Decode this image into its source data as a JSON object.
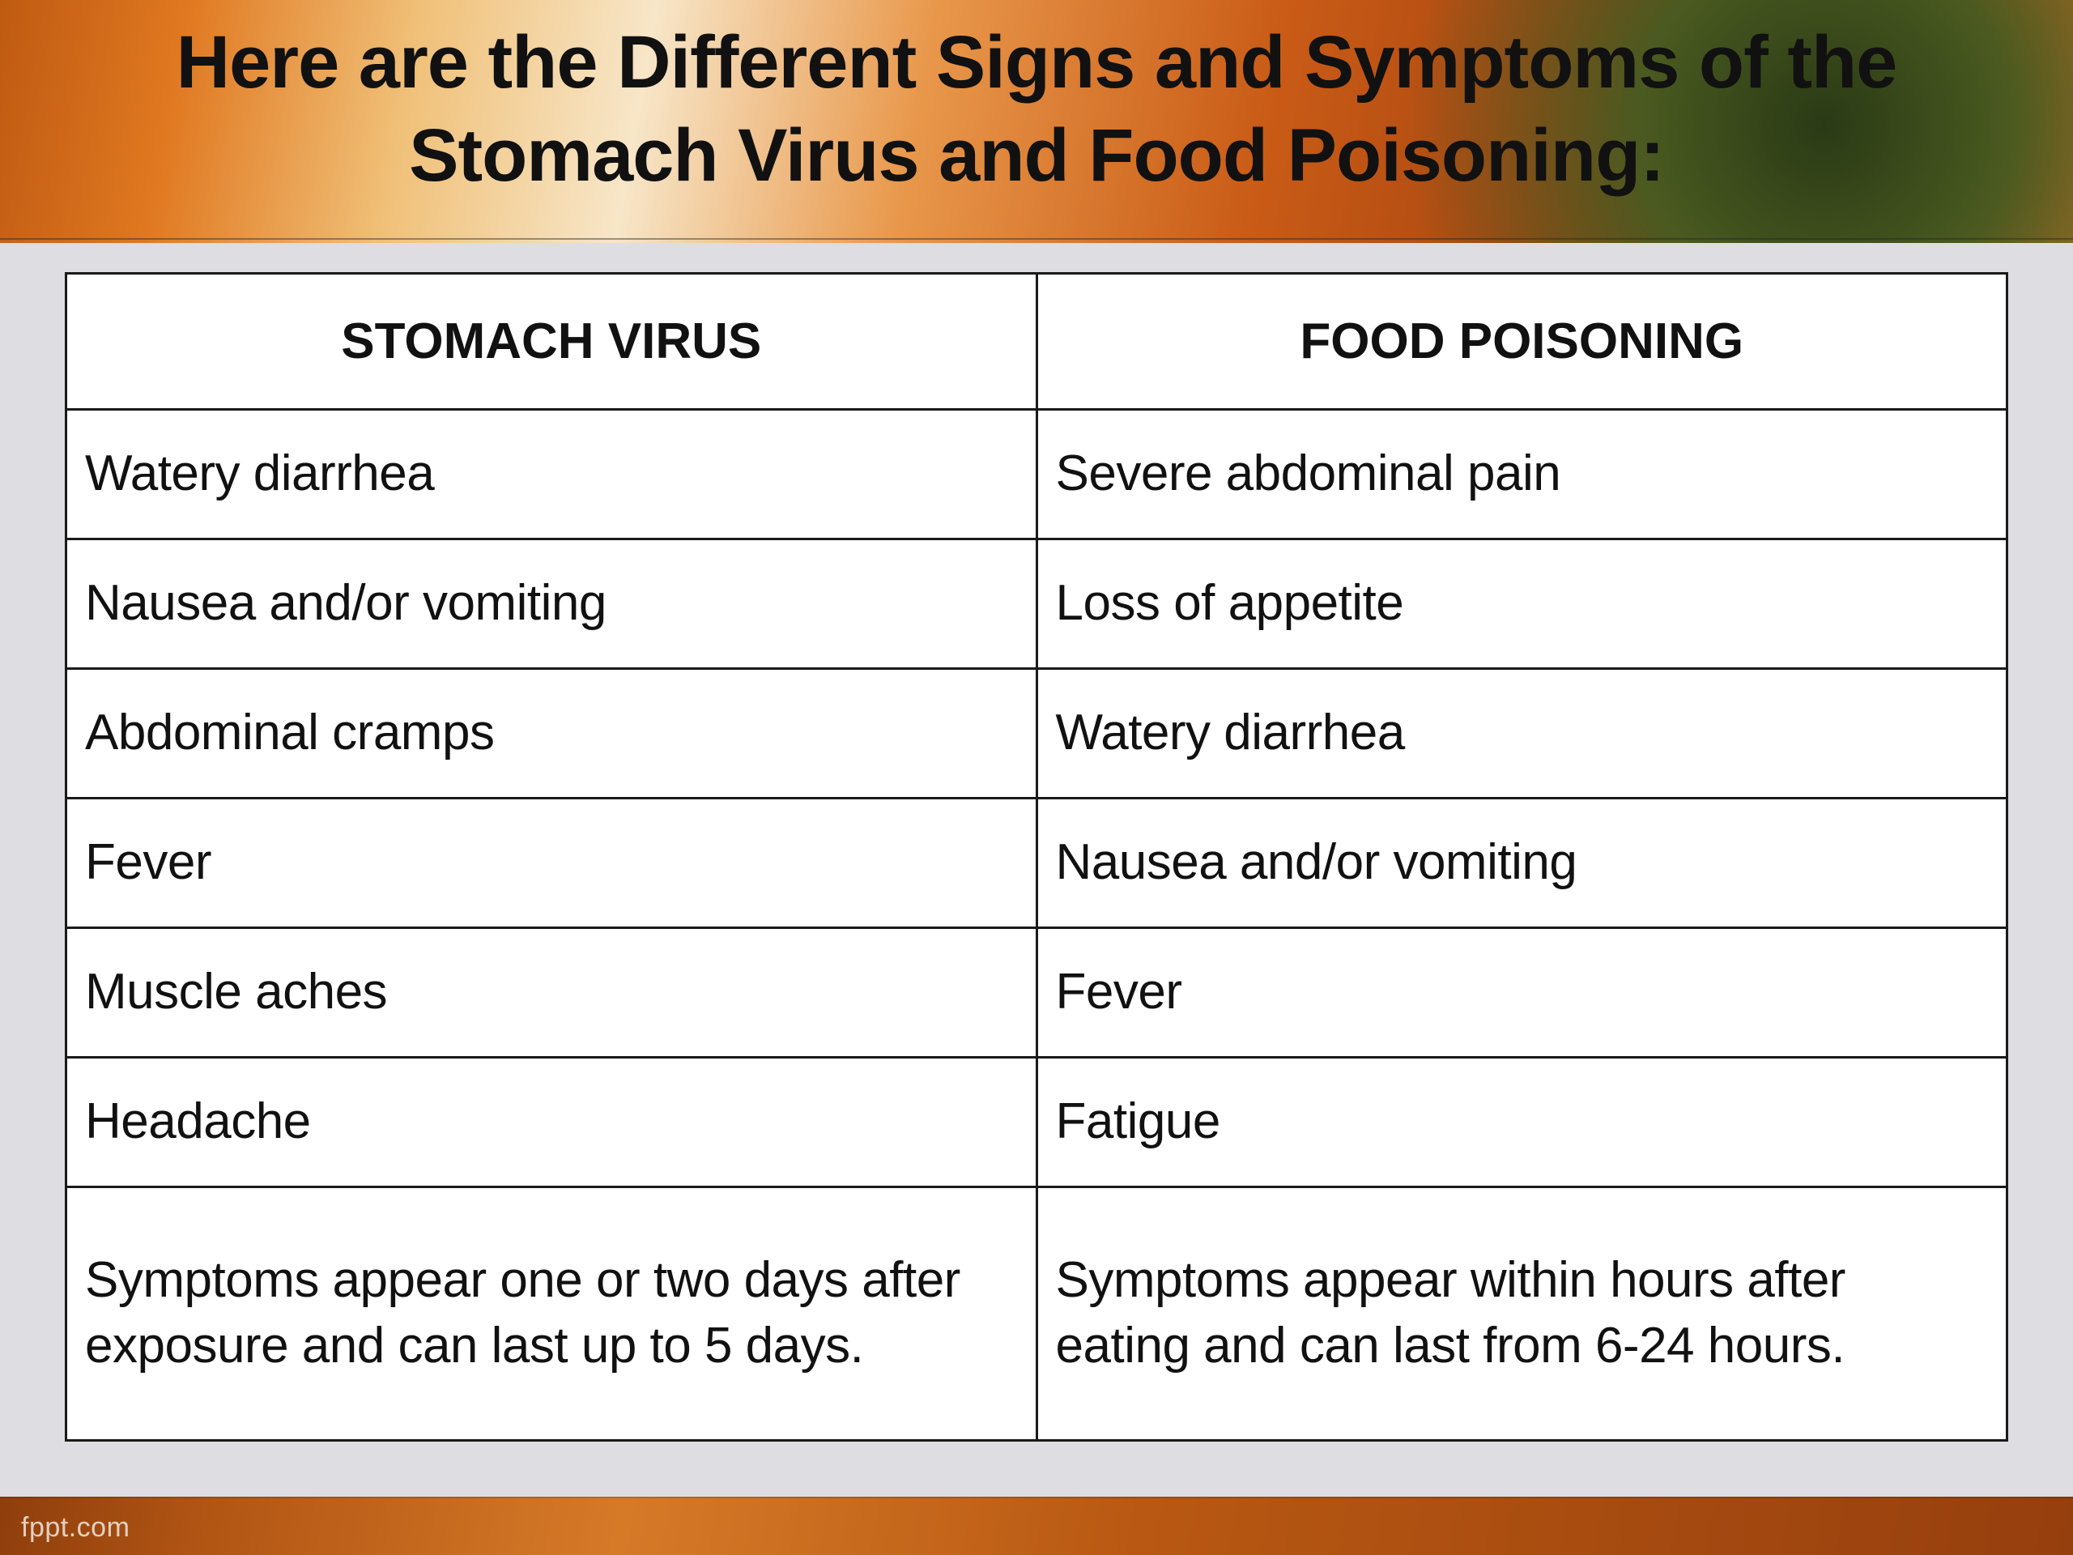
{
  "title": "Here are the Different Signs and Symptoms of the Stomach Virus and Food Poisoning:",
  "watermark": "fppt.com",
  "table": {
    "columns": [
      "STOMACH VIRUS",
      "FOOD POISONING"
    ],
    "rows": [
      [
        "Watery diarrhea",
        "Severe abdominal pain"
      ],
      [
        "Nausea and/or vomiting",
        "Loss of appetite"
      ],
      [
        "Abdominal cramps",
        "Watery diarrhea"
      ],
      [
        "Fever",
        "Nausea and/or vomiting"
      ],
      [
        "Muscle aches",
        "Fever"
      ],
      [
        "Headache",
        "Fatigue"
      ],
      [
        "Symptoms appear one or two days after exposure and can last up to 5 days.",
        "Symptoms appear within hours after eating and can last from 6-24 hours."
      ]
    ],
    "header_fontsize": 62,
    "cell_fontsize": 62,
    "border_color": "#1a1a1a",
    "background_color": "#ffffff",
    "panel_background": "#dedee2"
  },
  "colors": {
    "title_text": "#111111",
    "gradient_stops": [
      "#bf5a12",
      "#e07820",
      "#f0c078",
      "#f7e6c8",
      "#e8974a",
      "#c95b16",
      "#9e3f10",
      "#c96820",
      "#e8a050"
    ],
    "corner_blob": "#2a3a15"
  }
}
